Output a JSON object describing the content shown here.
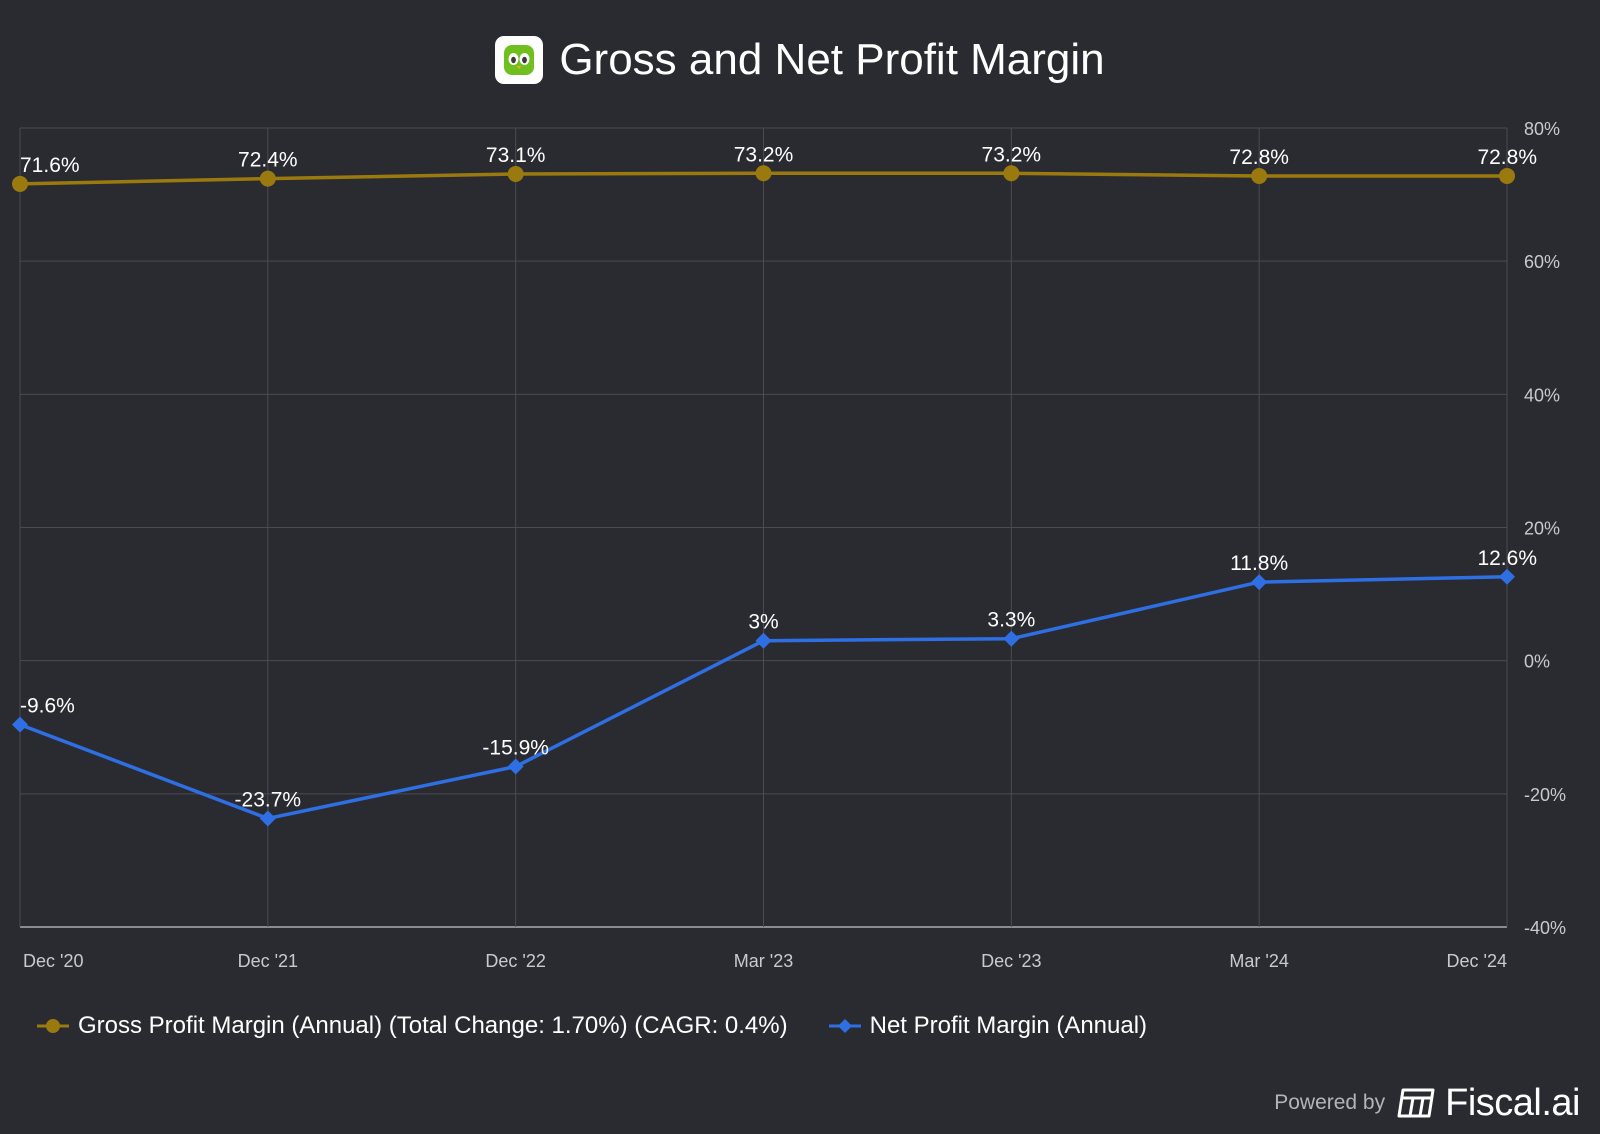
{
  "header": {
    "title": "Gross and Net Profit Margin",
    "logo_icon": "duolingo-owl-icon"
  },
  "chart_data": {
    "type": "line",
    "title": "Gross and Net Profit Margin",
    "categories": [
      "Dec '20",
      "Dec '21",
      "Dec '22",
      "Mar '23",
      "Dec '23",
      "Mar '24",
      "Dec '24"
    ],
    "ylim": [
      -40,
      80
    ],
    "yticks": [
      80,
      60,
      40,
      20,
      0,
      -20,
      -40
    ],
    "ytick_labels": [
      "80%",
      "60%",
      "40%",
      "20%",
      "0%",
      "-20%",
      "-40%"
    ],
    "y_axis_side": "right",
    "grid": true,
    "legend_position": "bottom",
    "series": [
      {
        "name": "Gross Profit Margin (Annual) (Total Change: 1.70%) (CAGR: 0.4%)",
        "values": [
          71.6,
          72.4,
          73.1,
          73.2,
          73.2,
          72.8,
          72.8
        ],
        "labels": [
          "71.6%",
          "72.4%",
          "73.1%",
          "73.2%",
          "73.2%",
          "72.8%",
          "72.8%"
        ],
        "color": "#9a7a0e",
        "marker": "circle"
      },
      {
        "name": "Net Profit Margin (Annual)",
        "values": [
          -9.6,
          -23.7,
          -15.9,
          3,
          3.3,
          11.8,
          12.6
        ],
        "labels": [
          "-9.6%",
          "-23.7%",
          "-15.9%",
          "3%",
          "3.3%",
          "11.8%",
          "12.6%"
        ],
        "color": "#2f6fe4",
        "marker": "diamond"
      }
    ]
  },
  "footer": {
    "powered_by": "Powered by",
    "brand": "Fiscal.ai",
    "brand_icon": "fiscal-logo-icon"
  }
}
